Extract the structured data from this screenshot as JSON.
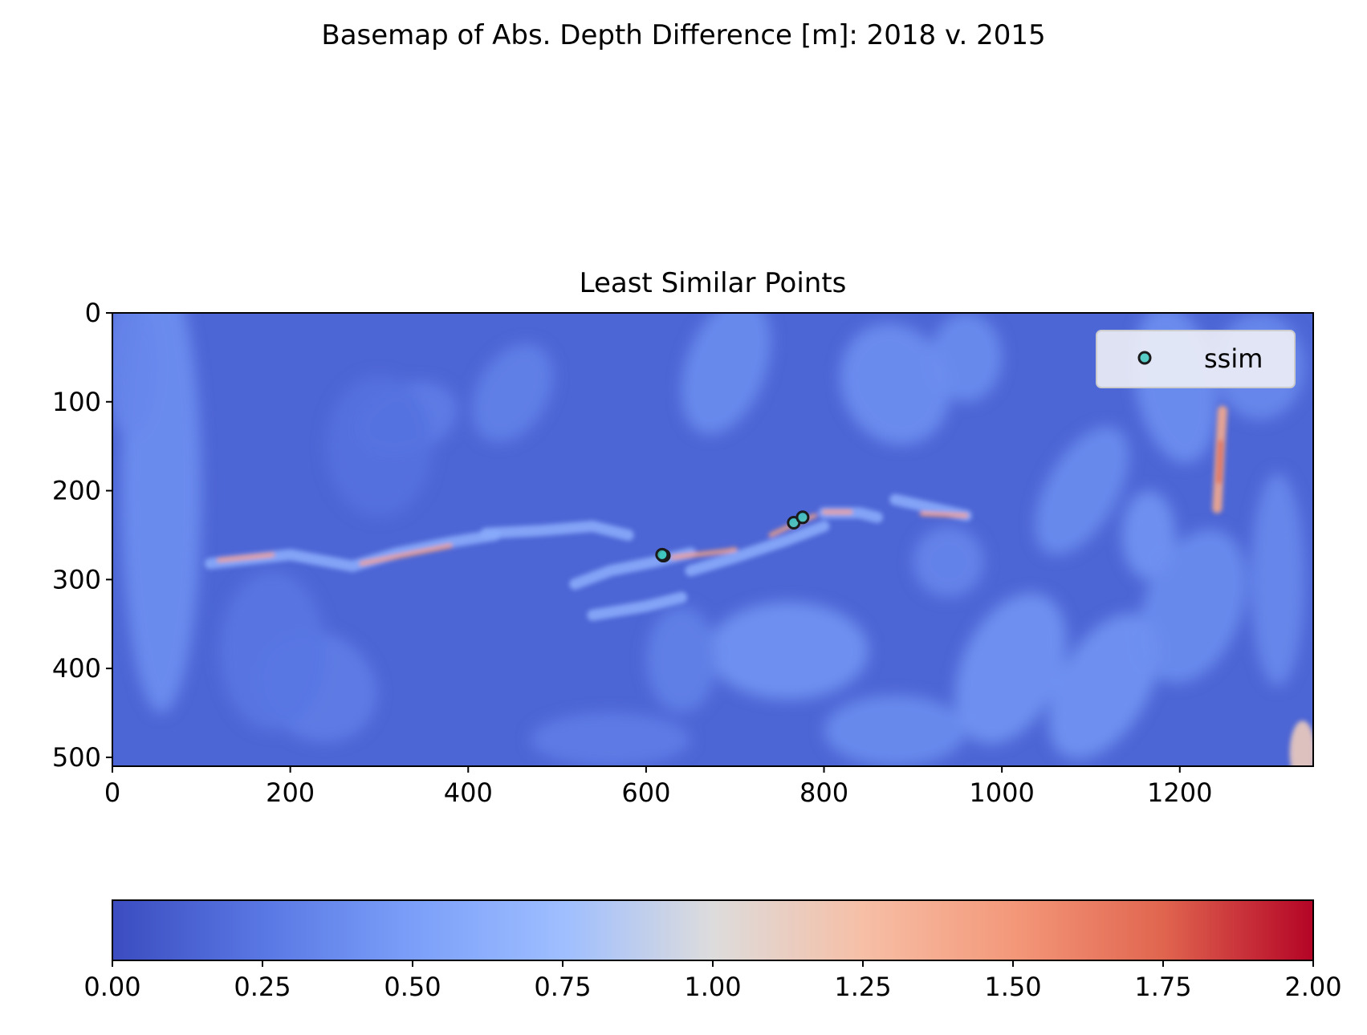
{
  "figure": {
    "suptitle": "Basemap of Abs. Depth Difference [m]: 2018 v. 2015"
  },
  "chart_data": [
    {
      "type": "heatmap",
      "title": "Least Similar Points",
      "xlabel": "",
      "ylabel": "",
      "xlim": [
        0,
        1350
      ],
      "ylim": [
        510,
        0
      ],
      "x_ticks": [
        0,
        200,
        400,
        600,
        800,
        1000,
        1200
      ],
      "y_ticks": [
        0,
        100,
        200,
        300,
        400,
        500
      ],
      "x_tick_labels": [
        "0",
        "200",
        "400",
        "600",
        "800",
        "1000",
        "1200"
      ],
      "y_tick_labels": [
        "0",
        "100",
        "200",
        "300",
        "400",
        "500"
      ],
      "colormap": "coolwarm",
      "value_range": [
        0.0,
        2.0
      ],
      "dominant_value": 0.15,
      "notes_visible": "low values (blue) across most of the map; a ridge of high values (orange/red) runs from about (110,280) to (970,228); a red streak near x=1245, y=150-230; a light patch in the bottom-right corner",
      "scatter_series": [
        {
          "name": "ssim",
          "marker_color": "#40c8c0",
          "edge_color": "#1a1a1a",
          "points": [
            [
              619,
              273
            ],
            [
              620,
              273
            ],
            [
              618,
              272
            ],
            [
              766,
              236
            ],
            [
              776,
              230
            ]
          ]
        }
      ],
      "legend": {
        "entries": [
          "ssim"
        ],
        "position": "top-right"
      }
    },
    {
      "type": "colorbar",
      "orientation": "horizontal",
      "colormap": "coolwarm",
      "range": [
        0.0,
        2.0
      ],
      "ticks": [
        0.0,
        0.25,
        0.5,
        0.75,
        1.0,
        1.25,
        1.5,
        1.75,
        2.0
      ],
      "tick_labels": [
        "0.00",
        "0.25",
        "0.50",
        "0.75",
        "1.00",
        "1.25",
        "1.50",
        "1.75",
        "2.00"
      ]
    }
  ]
}
